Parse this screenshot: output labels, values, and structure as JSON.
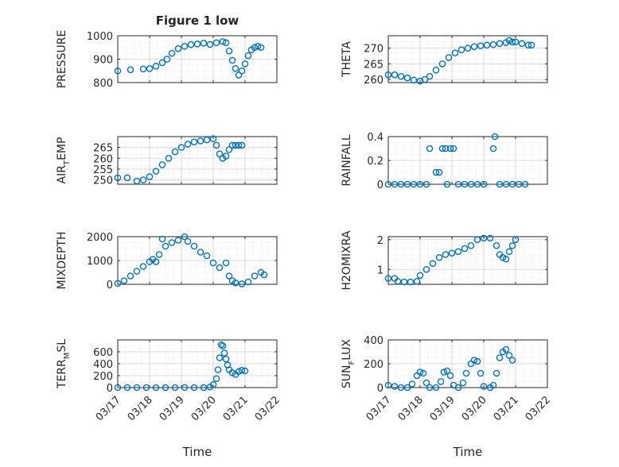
{
  "chart_data": {
    "title": "Figure 1 low",
    "xlabel": "Time",
    "x_tick_labels": [
      "03/17",
      "03/18",
      "03/19",
      "03/20",
      "03/21",
      "03/22"
    ],
    "xlim": [
      "03/17",
      "03/22"
    ],
    "marker": "open-circle",
    "series_color": "#0072BD",
    "grid": "major-and-minor",
    "panels": [
      {
        "id": "pressure",
        "type": "scatter",
        "ylabel_main": "PRESSURE",
        "ylabel_sub": "",
        "ylabel_tail": "",
        "ylim": [
          800,
          1000
        ],
        "yticks": [
          800,
          900,
          1000
        ],
        "ytick_labels": [
          "800",
          "900",
          "1000"
        ],
        "points": [
          [
            0.0,
            850
          ],
          [
            0.4,
            855
          ],
          [
            0.8,
            858
          ],
          [
            1.0,
            860
          ],
          [
            1.2,
            870
          ],
          [
            1.4,
            885
          ],
          [
            1.55,
            900
          ],
          [
            1.7,
            925
          ],
          [
            1.9,
            945
          ],
          [
            2.1,
            955
          ],
          [
            2.3,
            962
          ],
          [
            2.5,
            965
          ],
          [
            2.7,
            968
          ],
          [
            2.9,
            963
          ],
          [
            3.1,
            970
          ],
          [
            3.3,
            975
          ],
          [
            3.4,
            970
          ],
          [
            3.5,
            935
          ],
          [
            3.6,
            895
          ],
          [
            3.7,
            860
          ],
          [
            3.8,
            832
          ],
          [
            3.9,
            850
          ],
          [
            4.0,
            880
          ],
          [
            4.1,
            915
          ],
          [
            4.2,
            940
          ],
          [
            4.3,
            950
          ],
          [
            4.4,
            955
          ],
          [
            4.5,
            950
          ]
        ]
      },
      {
        "id": "theta",
        "type": "scatter",
        "ylabel_main": "THETA",
        "ylabel_sub": "",
        "ylabel_tail": "",
        "ylim": [
          259,
          274
        ],
        "yticks": [
          260,
          265,
          270
        ],
        "ytick_labels": [
          "260",
          "265",
          "270"
        ],
        "points": [
          [
            0.0,
            261.5
          ],
          [
            0.2,
            261.5
          ],
          [
            0.4,
            261
          ],
          [
            0.6,
            260.5
          ],
          [
            0.8,
            259.8
          ],
          [
            1.0,
            259.5
          ],
          [
            1.15,
            260
          ],
          [
            1.3,
            261
          ],
          [
            1.5,
            263
          ],
          [
            1.7,
            265
          ],
          [
            1.9,
            267
          ],
          [
            2.1,
            268.5
          ],
          [
            2.3,
            269.5
          ],
          [
            2.5,
            270
          ],
          [
            2.7,
            270.5
          ],
          [
            2.9,
            270.8
          ],
          [
            3.1,
            271
          ],
          [
            3.3,
            271.2
          ],
          [
            3.5,
            271.5
          ],
          [
            3.7,
            271.8
          ],
          [
            3.8,
            272.5
          ],
          [
            3.9,
            272
          ],
          [
            4.0,
            272
          ],
          [
            4.2,
            271.5
          ],
          [
            4.4,
            271
          ],
          [
            4.5,
            271
          ]
        ]
      },
      {
        "id": "air_temp",
        "type": "scatter",
        "ylabel_main": "AIR",
        "ylabel_sub": "T",
        "ylabel_tail": "EMP",
        "ylim": [
          248,
          270
        ],
        "yticks": [
          250,
          255,
          260,
          265
        ],
        "ytick_labels": [
          "250",
          "255",
          "260",
          "265"
        ],
        "points": [
          [
            0.0,
            251
          ],
          [
            0.3,
            251
          ],
          [
            0.6,
            249.5
          ],
          [
            0.8,
            250
          ],
          [
            1.0,
            251.5
          ],
          [
            1.2,
            254
          ],
          [
            1.4,
            257
          ],
          [
            1.6,
            260
          ],
          [
            1.8,
            263
          ],
          [
            2.0,
            265
          ],
          [
            2.2,
            266.5
          ],
          [
            2.4,
            267.5
          ],
          [
            2.6,
            268
          ],
          [
            2.8,
            268.5
          ],
          [
            3.0,
            269
          ],
          [
            3.1,
            266
          ],
          [
            3.2,
            262
          ],
          [
            3.3,
            260
          ],
          [
            3.4,
            261
          ],
          [
            3.5,
            264
          ],
          [
            3.6,
            266
          ],
          [
            3.7,
            266
          ],
          [
            3.8,
            266
          ],
          [
            3.9,
            266
          ]
        ]
      },
      {
        "id": "rainfall",
        "type": "scatter",
        "ylabel_main": "RAINFALL",
        "ylabel_sub": "",
        "ylabel_tail": "",
        "ylim": [
          0,
          0.4
        ],
        "yticks": [
          0,
          0.2,
          0.4
        ],
        "ytick_labels": [
          "0",
          "0.2",
          "0.4"
        ],
        "points": [
          [
            0.0,
            0
          ],
          [
            0.2,
            0
          ],
          [
            0.4,
            0
          ],
          [
            0.6,
            0
          ],
          [
            0.8,
            0
          ],
          [
            1.0,
            0
          ],
          [
            1.2,
            0
          ],
          [
            1.3,
            0.3
          ],
          [
            1.5,
            0.1
          ],
          [
            1.6,
            0.1
          ],
          [
            1.7,
            0.3
          ],
          [
            1.8,
            0.3
          ],
          [
            1.85,
            0
          ],
          [
            1.95,
            0.3
          ],
          [
            2.05,
            0.3
          ],
          [
            2.2,
            0
          ],
          [
            2.4,
            0
          ],
          [
            2.6,
            0
          ],
          [
            2.8,
            0
          ],
          [
            3.0,
            0
          ],
          [
            3.3,
            0.3
          ],
          [
            3.35,
            0.4
          ],
          [
            3.5,
            0
          ],
          [
            3.7,
            0
          ],
          [
            3.9,
            0
          ],
          [
            4.1,
            0
          ],
          [
            4.3,
            0
          ]
        ]
      },
      {
        "id": "mixdepth",
        "type": "scatter",
        "ylabel_main": "MIXDEPTH",
        "ylabel_sub": "",
        "ylabel_tail": "",
        "ylim": [
          0,
          2000
        ],
        "yticks": [
          0,
          1000,
          2000
        ],
        "ytick_labels": [
          "0",
          "1000",
          "2000"
        ],
        "points": [
          [
            0.0,
            40
          ],
          [
            0.2,
            150
          ],
          [
            0.4,
            350
          ],
          [
            0.6,
            550
          ],
          [
            0.8,
            750
          ],
          [
            1.0,
            950
          ],
          [
            1.1,
            1050
          ],
          [
            1.2,
            950
          ],
          [
            1.3,
            1250
          ],
          [
            1.4,
            1900
          ],
          [
            1.5,
            1600
          ],
          [
            1.7,
            1750
          ],
          [
            1.9,
            1850
          ],
          [
            2.1,
            2000
          ],
          [
            2.2,
            1800
          ],
          [
            2.4,
            1600
          ],
          [
            2.6,
            1350
          ],
          [
            2.8,
            1200
          ],
          [
            3.0,
            900
          ],
          [
            3.2,
            700
          ],
          [
            3.4,
            900
          ],
          [
            3.5,
            350
          ],
          [
            3.6,
            150
          ],
          [
            3.7,
            60
          ],
          [
            3.9,
            20
          ],
          [
            4.1,
            100
          ],
          [
            4.3,
            350
          ],
          [
            4.5,
            500
          ],
          [
            4.6,
            400
          ]
        ]
      },
      {
        "id": "h2omixra",
        "type": "scatter",
        "ylabel_main": "H2OMIXRA",
        "ylabel_sub": "",
        "ylabel_tail": "",
        "ylim": [
          0.5,
          2.1
        ],
        "yticks": [
          1,
          2
        ],
        "ytick_labels": [
          "1",
          "2"
        ],
        "points": [
          [
            0.0,
            0.7
          ],
          [
            0.2,
            0.7
          ],
          [
            0.3,
            0.6
          ],
          [
            0.5,
            0.58
          ],
          [
            0.7,
            0.58
          ],
          [
            0.9,
            0.6
          ],
          [
            1.0,
            0.8
          ],
          [
            1.2,
            1.0
          ],
          [
            1.4,
            1.2
          ],
          [
            1.6,
            1.4
          ],
          [
            1.8,
            1.5
          ],
          [
            2.0,
            1.55
          ],
          [
            2.2,
            1.6
          ],
          [
            2.4,
            1.7
          ],
          [
            2.6,
            1.8
          ],
          [
            2.8,
            2.0
          ],
          [
            3.0,
            2.05
          ],
          [
            3.2,
            2.05
          ],
          [
            3.4,
            1.8
          ],
          [
            3.5,
            1.5
          ],
          [
            3.6,
            1.4
          ],
          [
            3.7,
            1.35
          ],
          [
            3.8,
            1.6
          ],
          [
            3.9,
            1.8
          ],
          [
            4.0,
            2.0
          ]
        ]
      },
      {
        "id": "terr_msl",
        "type": "scatter",
        "ylabel_main": "TERR",
        "ylabel_sub": "M",
        "ylabel_tail": "SL",
        "ylim": [
          0,
          800
        ],
        "yticks": [
          0,
          200,
          400,
          600
        ],
        "ytick_labels": [
          "0",
          "200",
          "400",
          "600"
        ],
        "points": [
          [
            0.0,
            0
          ],
          [
            0.3,
            0
          ],
          [
            0.6,
            0
          ],
          [
            0.9,
            0
          ],
          [
            1.2,
            0
          ],
          [
            1.5,
            0
          ],
          [
            1.8,
            0
          ],
          [
            2.1,
            0
          ],
          [
            2.4,
            0
          ],
          [
            2.7,
            0
          ],
          [
            2.9,
            10
          ],
          [
            3.0,
            50
          ],
          [
            3.1,
            150
          ],
          [
            3.15,
            300
          ],
          [
            3.2,
            500
          ],
          [
            3.25,
            720
          ],
          [
            3.3,
            700
          ],
          [
            3.35,
            580
          ],
          [
            3.4,
            480
          ],
          [
            3.45,
            380
          ],
          [
            3.5,
            300
          ],
          [
            3.6,
            250
          ],
          [
            3.7,
            220
          ],
          [
            3.8,
            270
          ],
          [
            3.9,
            290
          ],
          [
            4.0,
            280
          ]
        ]
      },
      {
        "id": "sun_flux",
        "type": "scatter",
        "ylabel_main": "SUN",
        "ylabel_sub": "F",
        "ylabel_tail": "LUX",
        "ylim": [
          0,
          400
        ],
        "yticks": [
          0,
          200,
          400
        ],
        "ytick_labels": [
          "0",
          "200",
          "400"
        ],
        "points": [
          [
            0.0,
            20
          ],
          [
            0.2,
            10
          ],
          [
            0.4,
            0
          ],
          [
            0.6,
            0
          ],
          [
            0.75,
            30
          ],
          [
            0.9,
            100
          ],
          [
            1.0,
            130
          ],
          [
            1.1,
            120
          ],
          [
            1.2,
            40
          ],
          [
            1.3,
            0
          ],
          [
            1.5,
            0
          ],
          [
            1.65,
            50
          ],
          [
            1.75,
            130
          ],
          [
            1.85,
            140
          ],
          [
            1.95,
            100
          ],
          [
            2.05,
            20
          ],
          [
            2.2,
            0
          ],
          [
            2.35,
            40
          ],
          [
            2.45,
            120
          ],
          [
            2.6,
            200
          ],
          [
            2.7,
            230
          ],
          [
            2.8,
            220
          ],
          [
            2.9,
            120
          ],
          [
            3.0,
            10
          ],
          [
            3.2,
            0
          ],
          [
            3.3,
            20
          ],
          [
            3.4,
            120
          ],
          [
            3.5,
            250
          ],
          [
            3.6,
            300
          ],
          [
            3.7,
            320
          ],
          [
            3.8,
            270
          ],
          [
            3.9,
            230
          ]
        ]
      }
    ]
  }
}
